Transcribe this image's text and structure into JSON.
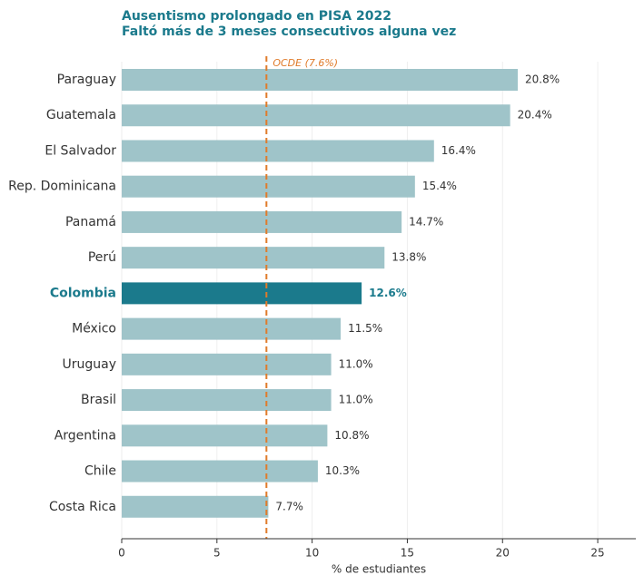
{
  "chart_data": {
    "type": "barh",
    "title": "Ausentismo prolongado en PISA 2022",
    "subtitle": "Faltó más de 3 meses consecutivos alguna vez",
    "xlabel": "% de estudiantes",
    "categories": [
      "Paraguay",
      "Guatemala",
      "El Salvador",
      "Rep. Dominicana",
      "Panamá",
      "Perú",
      "Colombia",
      "México",
      "Uruguay",
      "Brasil",
      "Argentina",
      "Chile",
      "Costa Rica"
    ],
    "values": [
      20.8,
      20.4,
      16.4,
      15.4,
      14.7,
      13.8,
      12.6,
      11.5,
      11.0,
      11.0,
      10.8,
      10.3,
      7.7
    ],
    "value_labels": [
      "20.8%",
      "20.4%",
      "16.4%",
      "15.4%",
      "14.7%",
      "13.8%",
      "12.6%",
      "11.5%",
      "11.0%",
      "11.0%",
      "10.8%",
      "10.3%",
      "7.7%"
    ],
    "color": "#9fc4c9",
    "highlight": "Colombia",
    "highlight_color": "#1b7a8c",
    "reference_line": {
      "value": 7.6,
      "label": "OCDE (7.6%)",
      "color": "#e07b2a"
    },
    "xlim": [
      0,
      27
    ],
    "xticks": [
      0,
      5,
      10,
      15,
      20,
      25
    ],
    "grid": true
  }
}
